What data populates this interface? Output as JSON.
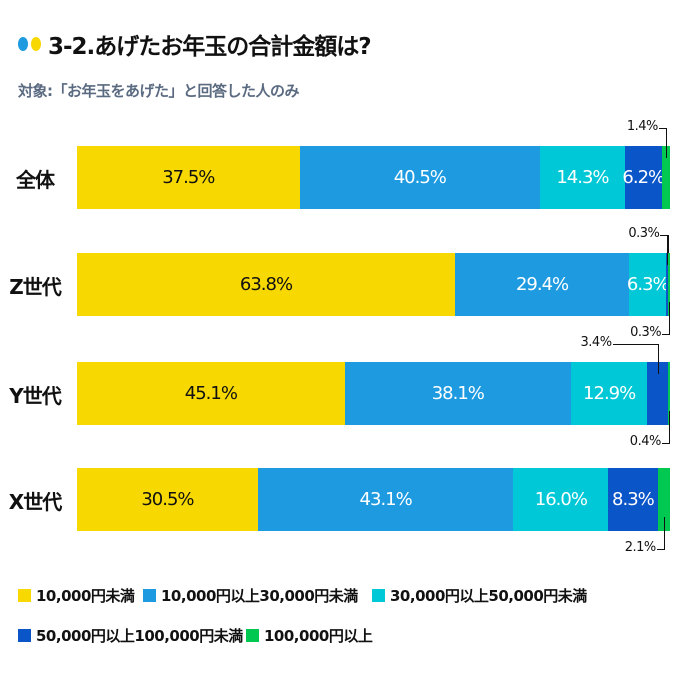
{
  "title": "3-2.あげたお年玉の合計金額は?",
  "subtitle": "対象:「お年玉をあげた」と回答した人のみ",
  "title_dot_colors": [
    "#1E9BE0",
    "#F7D800"
  ],
  "chart_data": {
    "type": "bar",
    "orientation": "horizontal",
    "stacked": true,
    "percent": true,
    "categories": [
      "全体",
      "Z世代",
      "Y世代",
      "X世代"
    ],
    "series": [
      {
        "name": "10,000円未満",
        "color": "#F7D800",
        "text_color": "#111111",
        "values": [
          37.5,
          63.8,
          45.1,
          30.5
        ]
      },
      {
        "name": "10,000円以上30,000円未満",
        "color": "#1E9BE0",
        "text_color": "#ffffff",
        "values": [
          40.5,
          29.4,
          38.1,
          43.1
        ]
      },
      {
        "name": "30,000円以上50,000円未満",
        "color": "#00C8D6",
        "text_color": "#ffffff",
        "values": [
          14.3,
          6.3,
          12.9,
          16.0
        ]
      },
      {
        "name": "50,000円以上100,000円未満",
        "color": "#0A55C8",
        "text_color": "#ffffff",
        "values": [
          6.2,
          0.3,
          3.4,
          8.3
        ]
      },
      {
        "name": "100,000円以上",
        "color": "#00C850",
        "text_color": "#ffffff",
        "values": [
          1.4,
          0.3,
          0.4,
          2.1
        ]
      }
    ],
    "labels": [
      [
        "37.5%",
        "40.5%",
        "14.3%",
        "6.2%",
        "1.4%"
      ],
      [
        "63.8%",
        "29.4%",
        "6.3%",
        "0.3%",
        "0.3%"
      ],
      [
        "45.1%",
        "38.1%",
        "12.9%",
        "3.4%",
        "0.4%"
      ],
      [
        "30.5%",
        "43.1%",
        "16.0%",
        "8.3%",
        "2.1%"
      ]
    ],
    "label_positions": [
      [
        "inside",
        "inside",
        "inside",
        "inside",
        "above"
      ],
      [
        "inside",
        "inside",
        "inside",
        "above",
        "below"
      ],
      [
        "inside",
        "inside",
        "inside",
        "above",
        "below"
      ],
      [
        "inside",
        "inside",
        "inside",
        "inside",
        "below"
      ]
    ],
    "legend_position": "bottom"
  }
}
